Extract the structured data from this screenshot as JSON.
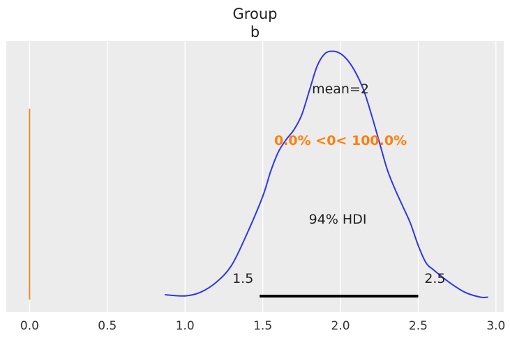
{
  "chart_data": {
    "type": "density",
    "title_lines": [
      "Group",
      "b"
    ],
    "xlabel": "",
    "ylabel": "",
    "xlim": [
      -0.15,
      3.05
    ],
    "xticks": [
      0.0,
      0.5,
      1.0,
      1.5,
      2.0,
      2.5,
      3.0
    ],
    "xtick_labels": [
      "0.0",
      "0.5",
      "1.0",
      "1.5",
      "2.0",
      "2.5",
      "3.0"
    ],
    "grid": "vertical",
    "background": "#ececec",
    "curve_color": "#3333ee",
    "ref_color": "#ff7f0e",
    "hdi_color": "#000000",
    "density": {
      "x": [
        0.87,
        1.0,
        1.1,
        1.2,
        1.3,
        1.4,
        1.5,
        1.55,
        1.6,
        1.65,
        1.7,
        1.75,
        1.8,
        1.85,
        1.9,
        1.95,
        2.0,
        2.05,
        2.1,
        2.15,
        2.2,
        2.25,
        2.3,
        2.35,
        2.4,
        2.45,
        2.5,
        2.55,
        2.6,
        2.7,
        2.8,
        2.9,
        2.95
      ],
      "y": [
        0.02,
        0.015,
        0.03,
        0.07,
        0.14,
        0.27,
        0.42,
        0.52,
        0.6,
        0.65,
        0.69,
        0.75,
        0.85,
        0.95,
        1.0,
        1.01,
        1.0,
        0.97,
        0.92,
        0.85,
        0.75,
        0.64,
        0.53,
        0.45,
        0.38,
        0.31,
        0.22,
        0.15,
        0.12,
        0.07,
        0.03,
        0.01,
        0.01
      ]
    },
    "mean": 2,
    "mean_label": "mean=2",
    "ref_value": 0,
    "ref_label": "0.0% <0< 100.0%",
    "hdi_prob_label": "94% HDI",
    "hdi": [
      1.48,
      2.5
    ],
    "hdi_low_label": "1.5",
    "hdi_high_label": "2.5"
  }
}
